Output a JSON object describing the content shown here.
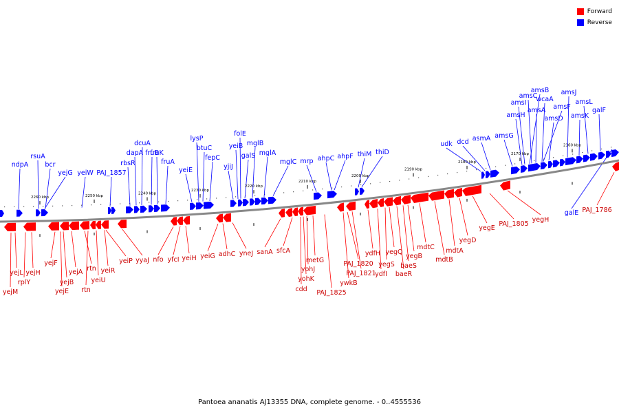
{
  "legend": {
    "forward_label": "Forward",
    "reverse_label": "Reverse",
    "forward_color": "#ff0000",
    "reverse_color": "#0000ff"
  },
  "caption": "Pantoea ananatis AJ13355 DNA, complete genome. - 0..4555536",
  "scale_labels": [
    "2260 kbp",
    "2250 kbp",
    "2240 kbp",
    "2230 kbp",
    "2220 kbp",
    "2210 kbp",
    "2200 kbp",
    "2190 kbp",
    "2180 kbp",
    "2170 kbp",
    "2160 kbp"
  ],
  "reverse_genes": [
    "ndpA",
    "rsuA",
    "bcr",
    "yejG",
    "yeiW",
    "PAJ_1857",
    "rbsR",
    "dapA",
    "dcuA",
    "fruB",
    "fruK",
    "fruA",
    "yeiE",
    "lysP",
    "btuC",
    "fepC",
    "yjiJ",
    "folE",
    "yeiB",
    "galS",
    "mglB",
    "mglA",
    "mglC",
    "mrp",
    "ahpC",
    "ahpF",
    "thiM",
    "thiD",
    "udk",
    "dcd",
    "asmA",
    "amsG",
    "amsI",
    "amsH",
    "amsC",
    "amsA",
    "amsB",
    "wcaA",
    "amsF",
    "amsD",
    "amsJ",
    "amsK",
    "amsL",
    "galF",
    "galE"
  ],
  "forward_genes": [
    "yejM",
    "yejL",
    "rplY",
    "yejH",
    "yejF",
    "yejB",
    "yejE",
    "yejA",
    "rtn",
    "rtn",
    "yeiU",
    "yeiR",
    "yeiP",
    "yyaJ",
    "nfo",
    "yfcI",
    "yeiH",
    "yeiG",
    "adhC",
    "yneJ",
    "sanA",
    "sfcA",
    "cdd",
    "yohK",
    "yohJ",
    "metG",
    "PAJ_1825",
    "ywkB",
    "PAJ_1820",
    "PAJ_1821",
    "ydfH",
    "ydfI",
    "yegS",
    "yegQ",
    "baeR",
    "baeS",
    "yegB",
    "mdtC",
    "mdtB",
    "mdtA",
    "yegD",
    "yegE",
    "PAJ_1805",
    "yegH",
    "PAJ_1786"
  ]
}
